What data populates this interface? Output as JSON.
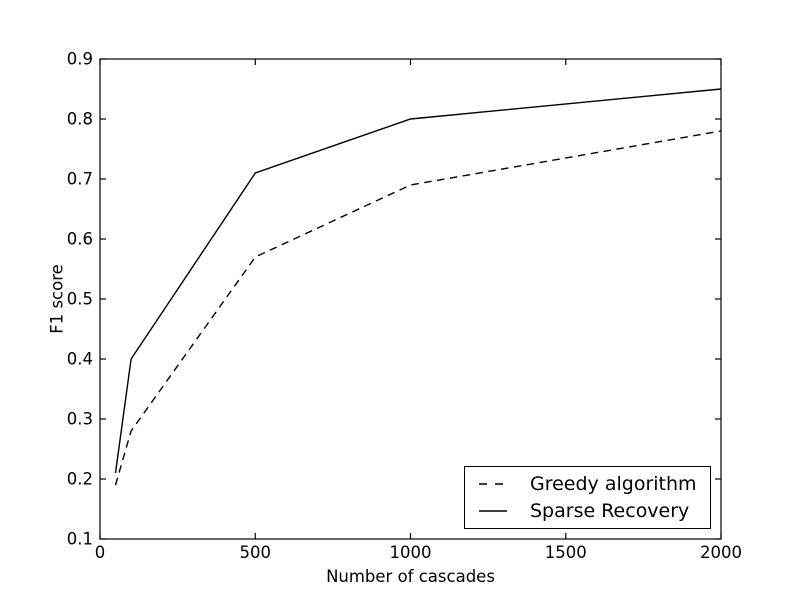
{
  "chart_data": {
    "type": "line",
    "title": "",
    "xlabel": "Number of cascades",
    "ylabel": "F1 score",
    "x": [
      50,
      100,
      500,
      1000,
      2000
    ],
    "series": [
      {
        "name": "Greedy algorithm",
        "line_style": "dashed",
        "color": "#000000",
        "values": [
          0.19,
          0.28,
          0.57,
          0.69,
          0.78
        ]
      },
      {
        "name": "Sparse Recovery",
        "line_style": "solid",
        "color": "#000000",
        "values": [
          0.21,
          0.4,
          0.71,
          0.8,
          0.85
        ]
      }
    ],
    "xlim": [
      0,
      2000
    ],
    "ylim": [
      0.1,
      0.9
    ],
    "xticks": [
      0,
      500,
      1000,
      1500,
      2000
    ],
    "yticks": [
      0.1,
      0.2,
      0.3,
      0.4,
      0.5,
      0.6,
      0.7,
      0.8,
      0.9
    ],
    "ytick_decimals": 1,
    "grid": false,
    "legend_position": "lower right",
    "background": "#ffffff",
    "axis_color": "#000000"
  }
}
